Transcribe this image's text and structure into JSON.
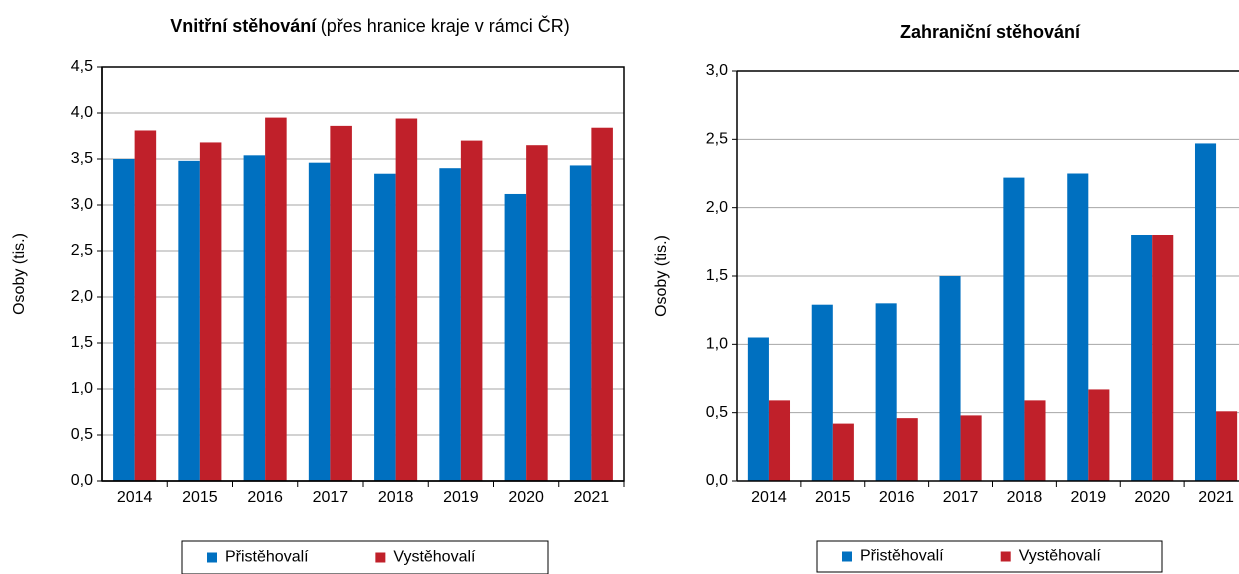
{
  "chart_data": [
    {
      "type": "bar",
      "title": "Vnitřní stěhování",
      "subtitle": "(přes hranice kraje v rámci ČR)",
      "ylabel": "Osoby (tis.)",
      "categories": [
        "2014",
        "2015",
        "2016",
        "2017",
        "2018",
        "2019",
        "2020",
        "2021"
      ],
      "series": [
        {
          "name": "Přistěhovalí",
          "color": "#0070c0",
          "values": [
            3.5,
            3.48,
            3.54,
            3.46,
            3.34,
            3.4,
            3.12,
            3.43
          ]
        },
        {
          "name": "Vystěhovalí",
          "color": "#c0202a",
          "values": [
            3.81,
            3.68,
            3.95,
            3.86,
            3.94,
            3.7,
            3.65,
            3.84
          ]
        }
      ],
      "ylim": [
        0,
        4.5
      ],
      "yticks": [
        {
          "value": 0,
          "label": "0,0"
        },
        {
          "value": 0.5,
          "label": "0,5"
        },
        {
          "value": 1,
          "label": "1,0"
        },
        {
          "value": 1.5,
          "label": "1,5"
        },
        {
          "value": 2,
          "label": "2,0"
        },
        {
          "value": 2.5,
          "label": "2,5"
        },
        {
          "value": 3,
          "label": "3,0"
        },
        {
          "value": 3.5,
          "label": "3,5"
        },
        {
          "value": 4,
          "label": "4,0"
        },
        {
          "value": 4.5,
          "label": "4,5"
        }
      ],
      "grid": true,
      "legend": "bottom"
    },
    {
      "type": "bar",
      "title": "Zahraniční stěhování",
      "ylabel": "Osoby (tis.)",
      "categories": [
        "2014",
        "2015",
        "2016",
        "2017",
        "2018",
        "2019",
        "2020",
        "2021"
      ],
      "series": [
        {
          "name": "Přistěhovalí",
          "color": "#0070c0",
          "values": [
            1.05,
            1.29,
            1.3,
            1.5,
            2.22,
            2.25,
            1.8,
            2.47
          ]
        },
        {
          "name": "Vystěhovalí",
          "color": "#c0202a",
          "values": [
            0.59,
            0.42,
            0.46,
            0.48,
            0.59,
            0.67,
            1.8,
            0.51
          ]
        }
      ],
      "ylim": [
        0,
        3
      ],
      "yticks": [
        {
          "value": 0,
          "label": "0,0"
        },
        {
          "value": 0.5,
          "label": "0,5"
        },
        {
          "value": 1,
          "label": "1,0"
        },
        {
          "value": 1.5,
          "label": "1,5"
        },
        {
          "value": 2,
          "label": "2,0"
        },
        {
          "value": 2.5,
          "label": "2,5"
        },
        {
          "value": 3,
          "label": "3,0"
        }
      ],
      "grid": true,
      "legend": "bottom"
    }
  ]
}
